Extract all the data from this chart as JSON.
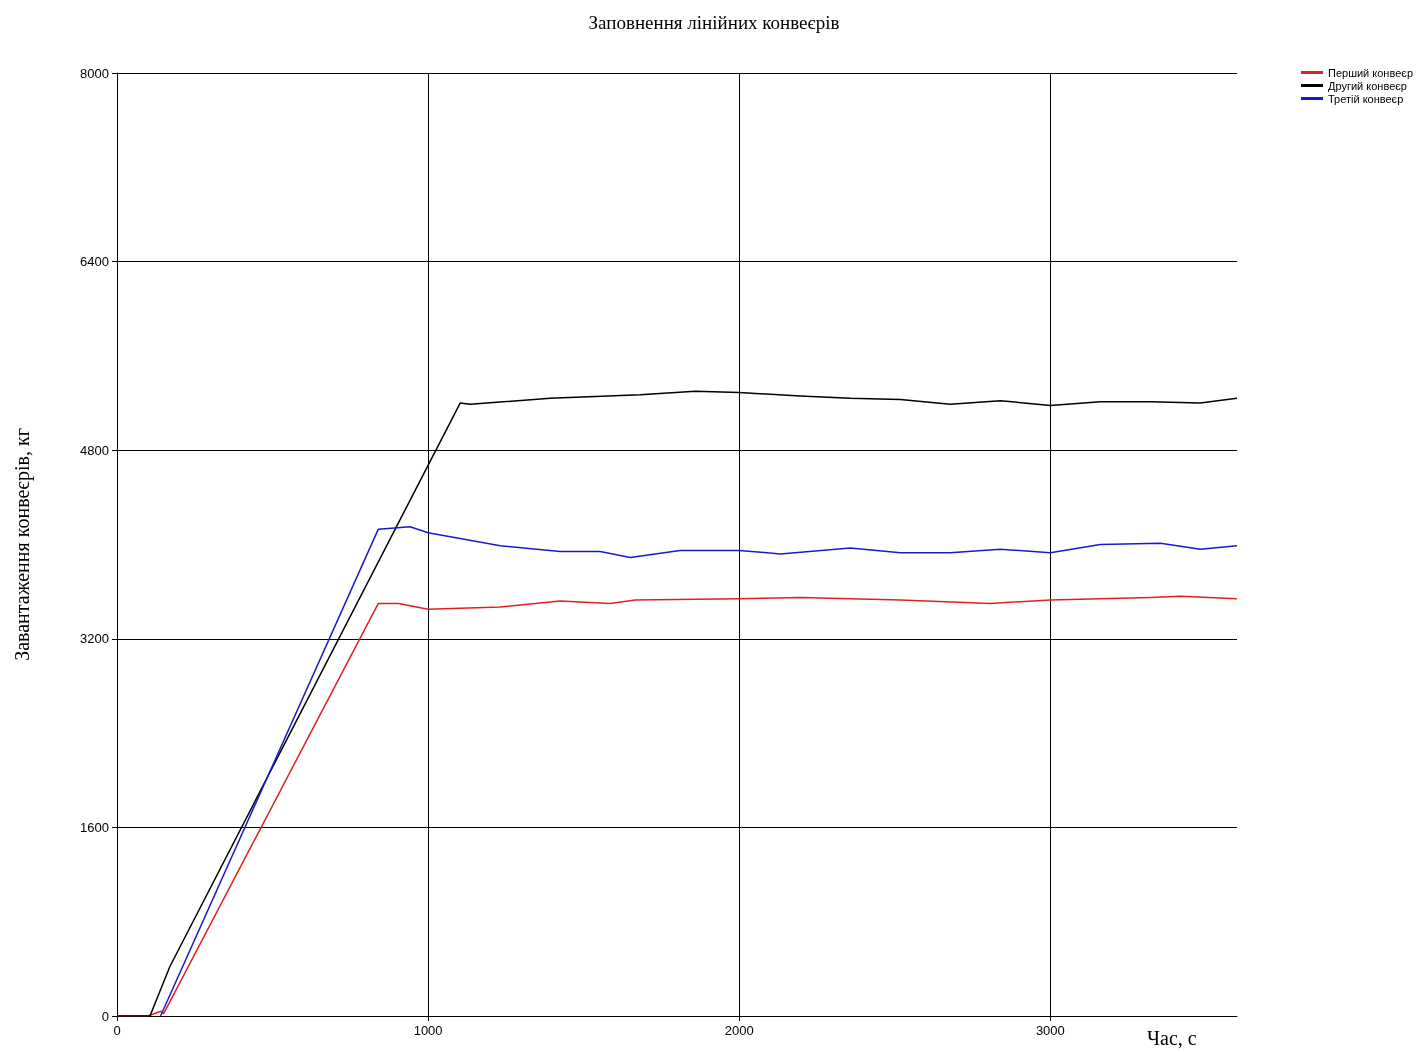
{
  "chart_data": {
    "type": "line",
    "title": "Заповнення лінійних конвеєрів",
    "xlabel": "Час, с",
    "ylabel": "Завантаження конвеєрів, кг",
    "xlim": [
      0,
      3600
    ],
    "xticks": [
      0,
      1000,
      2000,
      3000
    ],
    "ylim": [
      0,
      8000
    ],
    "yticks": [
      0,
      1600,
      3200,
      4800,
      6400,
      8000
    ],
    "grid": true,
    "legend": "top right",
    "marker": "none",
    "line_style": "solid",
    "series": [
      {
        "name": "Перший конвеєр",
        "color": "#e02020",
        "x": [
          0,
          100,
          140,
          150,
          840,
          905,
          1000,
          1232,
          1425,
          1585,
          1666,
          2000,
          2196,
          2518,
          2807,
          3000,
          3322,
          3418,
          3600
        ],
        "values": [
          0,
          0,
          40,
          20,
          3500,
          3500,
          3450,
          3470,
          3520,
          3500,
          3530,
          3540,
          3550,
          3530,
          3500,
          3530,
          3550,
          3560,
          3540
        ]
      },
      {
        "name": "Другий конвеєр",
        "color": "#000000",
        "x": [
          0,
          106,
          170,
          1103,
          1135,
          1392,
          1682,
          1858,
          2000,
          2196,
          2357,
          2518,
          2678,
          2839,
          3000,
          3161,
          3322,
          3482,
          3600
        ],
        "values": [
          0,
          0,
          420,
          5200,
          5190,
          5240,
          5270,
          5300,
          5290,
          5260,
          5240,
          5230,
          5190,
          5220,
          5180,
          5210,
          5210,
          5200,
          5240
        ]
      },
      {
        "name": "Третій конвеєр",
        "color": "#1a1acc",
        "x": [
          140,
          840,
          942,
          1000,
          1232,
          1425,
          1553,
          1650,
          1810,
          2000,
          2132,
          2357,
          2518,
          2678,
          2839,
          3000,
          3161,
          3354,
          3482,
          3600
        ],
        "values": [
          0,
          4130,
          4150,
          4100,
          3990,
          3940,
          3940,
          3890,
          3950,
          3950,
          3920,
          3970,
          3930,
          3930,
          3960,
          3930,
          4000,
          4010,
          3960,
          3990
        ]
      }
    ]
  }
}
